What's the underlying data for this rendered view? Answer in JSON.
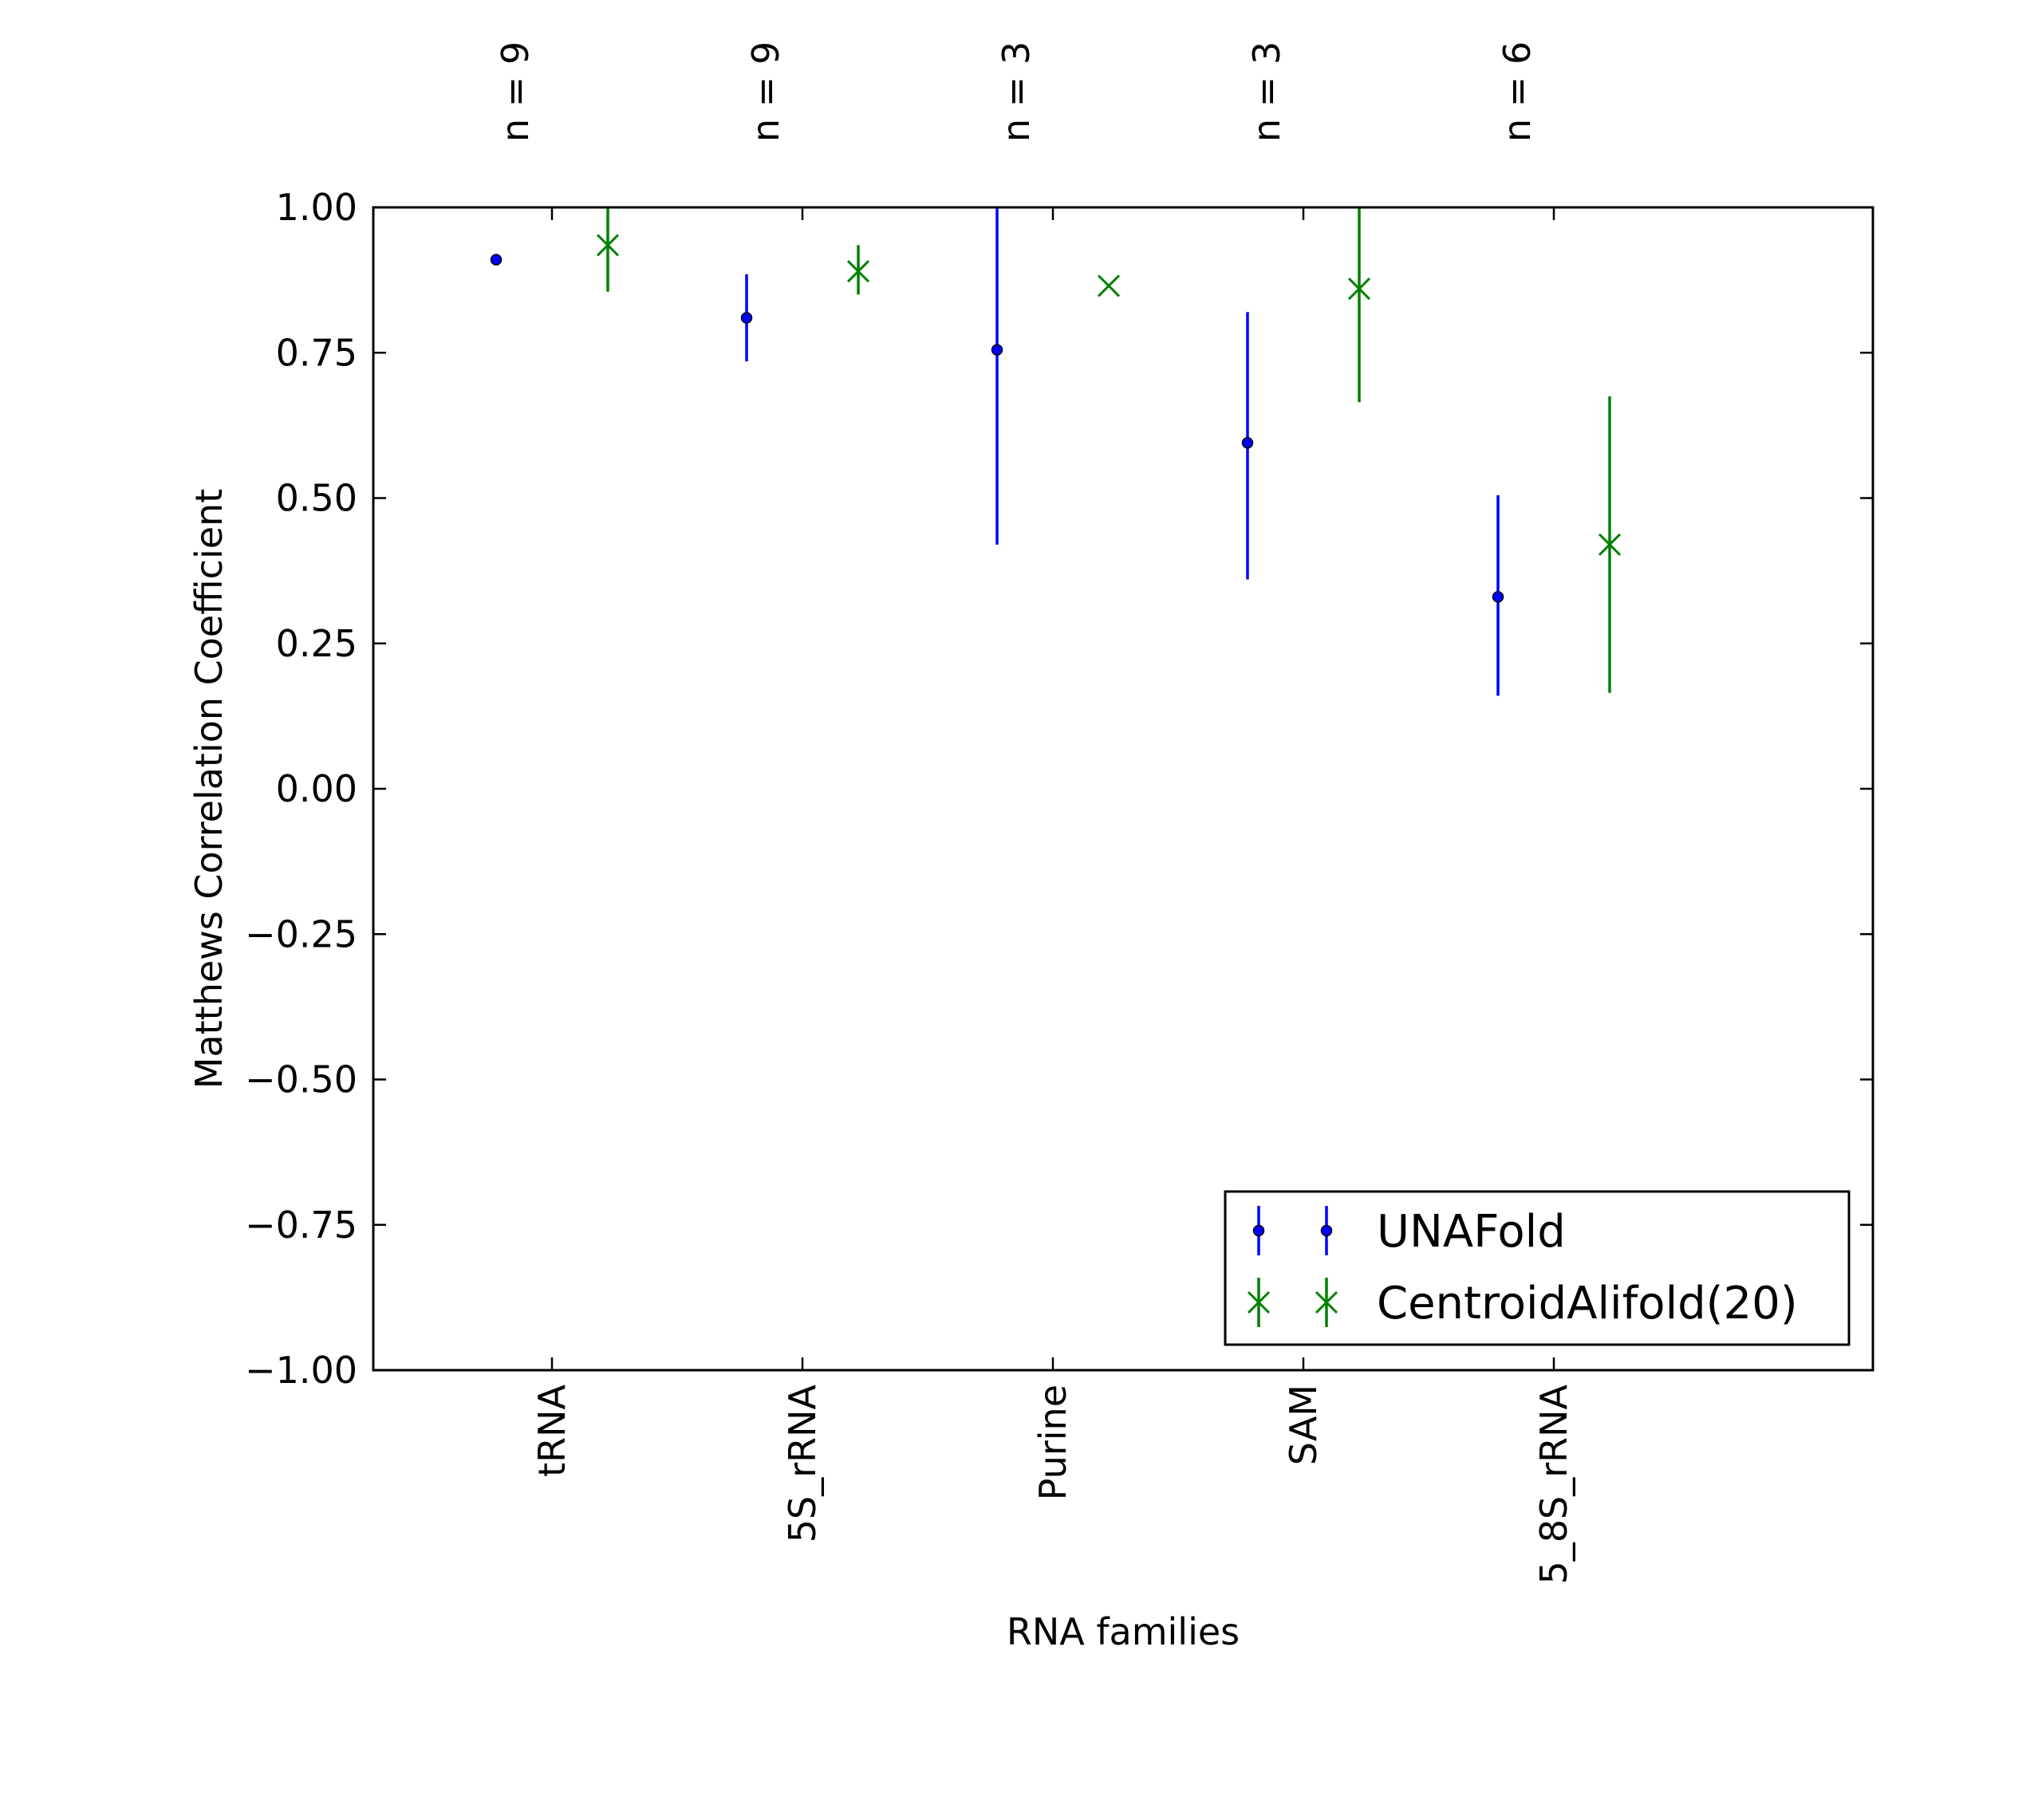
{
  "chart_data": {
    "type": "scatter",
    "categories": [
      "tRNA",
      "5S_rRNA",
      "Purine",
      "SAM",
      "5_8S_rRNA"
    ],
    "counts": [
      "n = 9",
      "n = 9",
      "n = 3",
      "n = 3",
      "n = 6"
    ],
    "xlabel": "RNA families",
    "ylabel": "Matthews Correlation Coefficient",
    "ylim": [
      -1.0,
      1.0
    ],
    "yticks": [
      "1.00",
      "0.75",
      "0.50",
      "0.25",
      "0.00",
      "−0.25",
      "−0.50",
      "−0.75",
      "−1.00"
    ],
    "grid": false,
    "legend_position": "lower-right",
    "series": [
      {
        "name": "UNAFold",
        "color": "#0000ff",
        "marker": "dot",
        "values": [
          0.91,
          0.81,
          0.755,
          0.595,
          0.33
        ],
        "lower": [
          0.91,
          0.735,
          0.42,
          0.36,
          0.16
        ],
        "upper": [
          0.91,
          0.885,
          1.0,
          0.82,
          0.505
        ]
      },
      {
        "name": "CentroidAlifold(20)",
        "color": "#008000",
        "marker": "x",
        "values": [
          0.935,
          0.89,
          0.865,
          0.86,
          0.42
        ],
        "lower": [
          0.855,
          0.85,
          0.865,
          0.665,
          0.165
        ],
        "upper": [
          1.0,
          0.935,
          0.865,
          1.0,
          0.675
        ]
      }
    ]
  }
}
